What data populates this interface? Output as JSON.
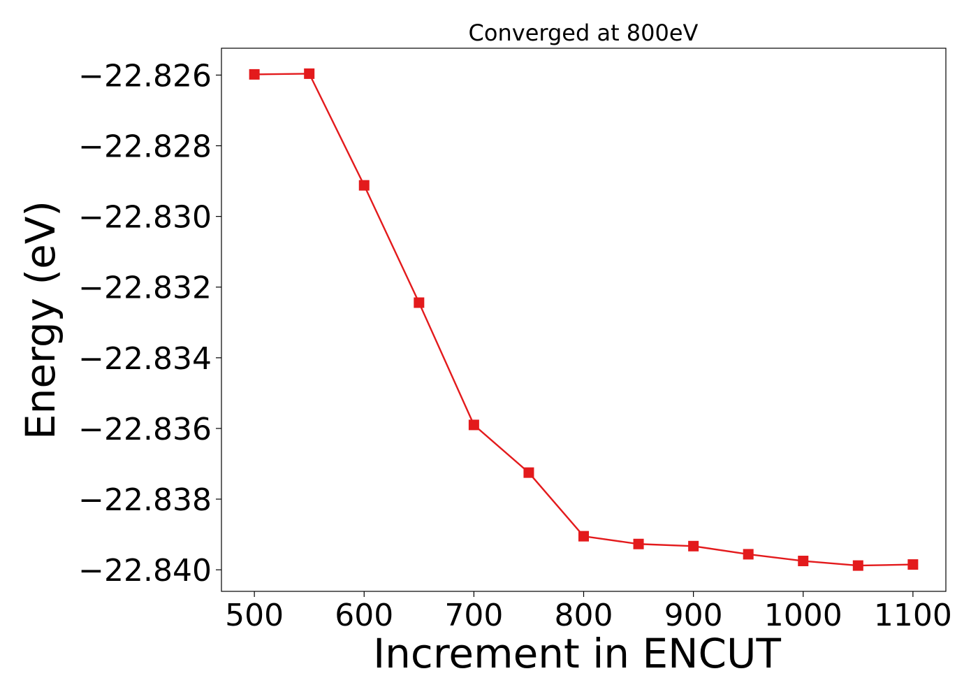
{
  "chart_data": {
    "type": "line",
    "title": "Converged at 800eV",
    "xlabel": "Increment in ENCUT",
    "ylabel": "Energy (eV)",
    "x": [
      500,
      550,
      600,
      650,
      700,
      750,
      800,
      850,
      900,
      950,
      1000,
      1050,
      1100
    ],
    "series": [
      {
        "values": [
          -22.82598,
          -22.82596,
          -22.82912,
          -22.83244,
          -22.8359,
          -22.83725,
          -22.83905,
          -22.83927,
          -22.83933,
          -22.83956,
          -22.83975,
          -22.83988,
          -22.83985
        ],
        "color": "#e31a1c",
        "marker": "square"
      }
    ],
    "xlim": [
      470,
      1130
    ],
    "ylim": [
      -22.84061,
      -22.82524
    ],
    "xticks": [
      500,
      600,
      700,
      800,
      900,
      1000,
      1100
    ],
    "xtick_labels": [
      "500",
      "600",
      "700",
      "800",
      "900",
      "1000",
      "1100"
    ],
    "yticks": [
      -22.826,
      -22.828,
      -22.83,
      -22.832,
      -22.834,
      -22.836,
      -22.838,
      -22.84
    ],
    "ytick_labels": [
      "−22.826",
      "−22.828",
      "−22.830",
      "−22.832",
      "−22.834",
      "−22.836",
      "−22.838",
      "−22.840"
    ],
    "grid": false,
    "legend": "none"
  }
}
